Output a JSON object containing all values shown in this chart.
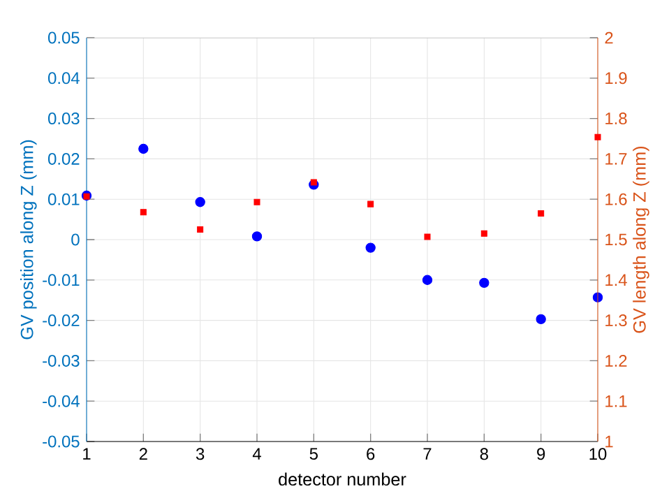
{
  "chart_data": {
    "type": "scatter",
    "xlabel": "detector number",
    "ylabel": "GV position along Z (mm)",
    "y2label": "GV length along Z (mm)",
    "x": [
      1,
      2,
      3,
      4,
      5,
      6,
      7,
      8,
      9,
      10
    ],
    "series": [
      {
        "color": "#0000ff",
        "marker": "circle",
        "values": [
          0.0109,
          0.0225,
          0.0093,
          0.0008,
          0.0136,
          -0.002,
          -0.01,
          -0.0107,
          -0.0197,
          -0.0143
        ]
      },
      {
        "color": "#ff0000",
        "marker": "square",
        "axis": "y2",
        "values": [
          1.607,
          1.568,
          1.525,
          1.593,
          1.642,
          1.588,
          1.507,
          1.515,
          1.565,
          1.754
        ]
      }
    ],
    "xlim": [
      1,
      10
    ],
    "xticks": [
      1,
      2,
      3,
      4,
      5,
      6,
      7,
      8,
      9,
      10
    ],
    "ylim": [
      -0.05,
      0.05
    ],
    "yticks": [
      -0.05,
      -0.04,
      -0.03,
      -0.02,
      -0.01,
      0,
      0.01,
      0.02,
      0.03,
      0.04,
      0.05
    ],
    "y2lim": [
      1,
      2
    ],
    "y2ticks": [
      1,
      1.1,
      1.2,
      1.3,
      1.4,
      1.5,
      1.6,
      1.7,
      1.8,
      1.9,
      2
    ],
    "grid": true
  }
}
